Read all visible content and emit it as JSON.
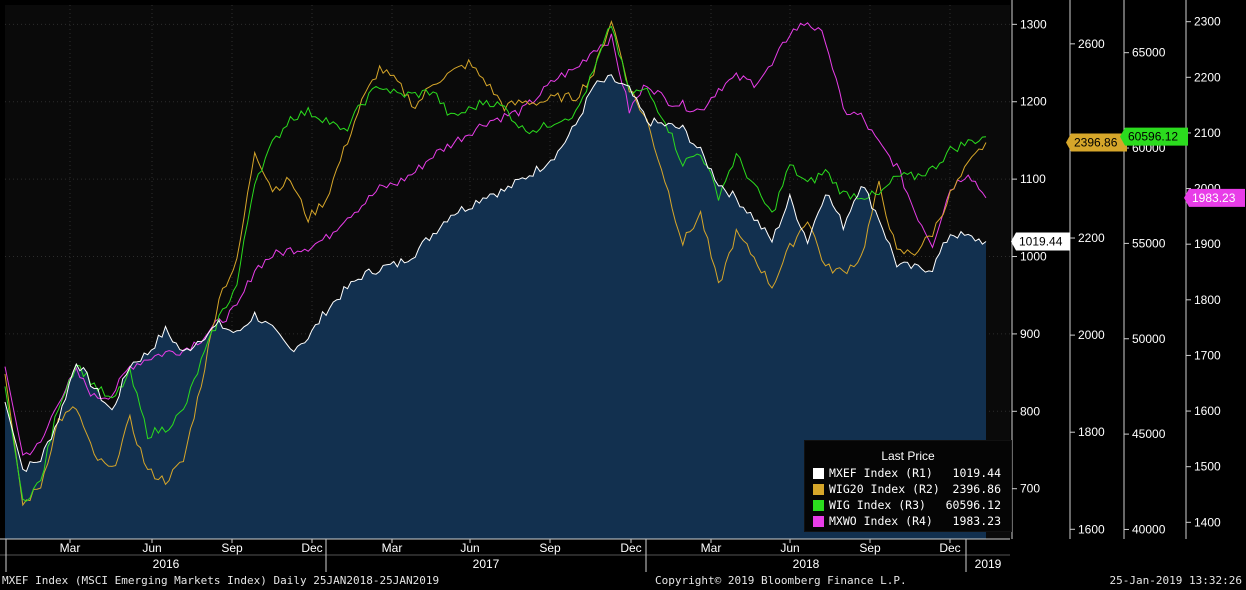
{
  "chart_data": {
    "type": "line",
    "title": "MXEF Index (MSCI Emerging Markets Index) Daily 25JAN2018-25JAN2019",
    "x_month_labels": [
      "Mar",
      "Jun",
      "Sep",
      "Dec",
      "Mar",
      "Jun",
      "Sep",
      "Dec",
      "Mar",
      "Jun",
      "Sep",
      "Dec"
    ],
    "x_year_labels": [
      "2016",
      "2017",
      "2018",
      "2019"
    ],
    "axes": [
      {
        "id": "R1",
        "ticks": [
          "1300",
          "1200",
          "1100",
          "1000",
          "900",
          "800",
          "700"
        ],
        "ylim": [
          635,
          1325
        ]
      },
      {
        "id": "R2",
        "ticks": [
          "2600",
          "2400",
          "2200",
          "2000",
          "1800",
          "1600"
        ],
        "ylim": [
          1580,
          2680
        ]
      },
      {
        "id": "R3",
        "ticks": [
          "65000",
          "60000",
          "55000",
          "50000",
          "45000",
          "40000"
        ],
        "ylim": [
          39500,
          67500
        ]
      },
      {
        "id": "R4",
        "ticks": [
          "2300",
          "2200",
          "2100",
          "2000",
          "1900",
          "1800",
          "1700",
          "1600",
          "1500",
          "1400"
        ],
        "ylim": [
          1370,
          2330
        ]
      }
    ],
    "series": [
      {
        "name": "MXEF Index",
        "axis": "R1",
        "last": "1019.44",
        "color": "#ffffff",
        "values": [
          812,
          725,
          738,
          790,
          865,
          830,
          800,
          860,
          875,
          905,
          875,
          895,
          912,
          900,
          925,
          905,
          880,
          895,
          930,
          955,
          975,
          985,
          990,
          1005,
          1030,
          1055,
          1065,
          1080,
          1085,
          1100,
          1115,
          1135,
          1170,
          1220,
          1230,
          1215,
          1175,
          1170,
          1165,
          1135,
          1095,
          1075,
          1050,
          1020,
          1075,
          1020,
          1085,
          1040,
          1095,
          1050,
          990,
          985,
          985,
          1030,
          1025,
          1019.44
        ]
      },
      {
        "name": "WIG20 Index",
        "axis": "R2",
        "last": "2396.86",
        "color": "#d6a62a",
        "values": [
          1920,
          1650,
          1690,
          1825,
          1850,
          1750,
          1720,
          1825,
          1720,
          1700,
          1740,
          1900,
          2080,
          2150,
          2380,
          2300,
          2320,
          2240,
          2280,
          2380,
          2480,
          2550,
          2520,
          2470,
          2520,
          2540,
          2560,
          2520,
          2470,
          2480,
          2480,
          2490,
          2490,
          2540,
          2650,
          2510,
          2440,
          2320,
          2190,
          2250,
          2100,
          2210,
          2160,
          2100,
          2180,
          2240,
          2140,
          2130,
          2160,
          2310,
          2170,
          2170,
          2210,
          2290,
          2350,
          2396.86
        ]
      },
      {
        "name": "WIG Index",
        "axis": "R3",
        "last": "60596.12",
        "color": "#2bdc1e",
        "values": [
          47500,
          41500,
          42500,
          46500,
          48700,
          47600,
          46700,
          48200,
          45000,
          45300,
          46200,
          48800,
          51100,
          52800,
          58300,
          60200,
          61600,
          61900,
          61500,
          60800,
          62300,
          63300,
          62800,
          62800,
          63000,
          61600,
          62000,
          62500,
          62100,
          61000,
          61000,
          61500,
          61800,
          64000,
          66500,
          62900,
          63000,
          61500,
          59200,
          59800,
          57500,
          59600,
          58000,
          56500,
          59100,
          58100,
          58800,
          57600,
          57500,
          57500,
          58500,
          58500,
          58900,
          59900,
          60300,
          60596.12
        ]
      },
      {
        "name": "MXWO Index",
        "axis": "R4",
        "last": "1983.23",
        "color": "#e83de8",
        "values": [
          1680,
          1520,
          1540,
          1620,
          1670,
          1625,
          1630,
          1680,
          1695,
          1705,
          1710,
          1730,
          1760,
          1785,
          1855,
          1880,
          1890,
          1895,
          1910,
          1945,
          1970,
          2000,
          2010,
          2030,
          2060,
          2080,
          2100,
          2120,
          2130,
          2140,
          2170,
          2200,
          2215,
          2250,
          2270,
          2140,
          2190,
          2160,
          2150,
          2140,
          2180,
          2200,
          2190,
          2220,
          2280,
          2300,
          2270,
          2140,
          2130,
          2080,
          2040,
          1960,
          1900,
          2000,
          2030,
          1983.23
        ]
      }
    ],
    "legend_title": "Last Price",
    "legend_rows": [
      {
        "name": "MXEF Index  (R1)",
        "value": "1019.44"
      },
      {
        "name": "WIG20 Index  (R2)",
        "value": "2396.86"
      },
      {
        "name": "WIG Index  (R3)",
        "value": "60596.12"
      },
      {
        "name": "MXWO Index  (R4)",
        "value": "1983.23"
      }
    ],
    "colors": {
      "background": "#000000",
      "plot_bg": "#0a0a0a",
      "area_fill": "#12304f",
      "grid": "#2d2d2d"
    }
  },
  "footer": {
    "left": "MXEF Index (MSCI Emerging Markets Index)  Daily 25JAN2018-25JAN2019",
    "center": "Copyright© 2019 Bloomberg Finance L.P.",
    "right": "25-Jan-2019 13:32:26"
  }
}
